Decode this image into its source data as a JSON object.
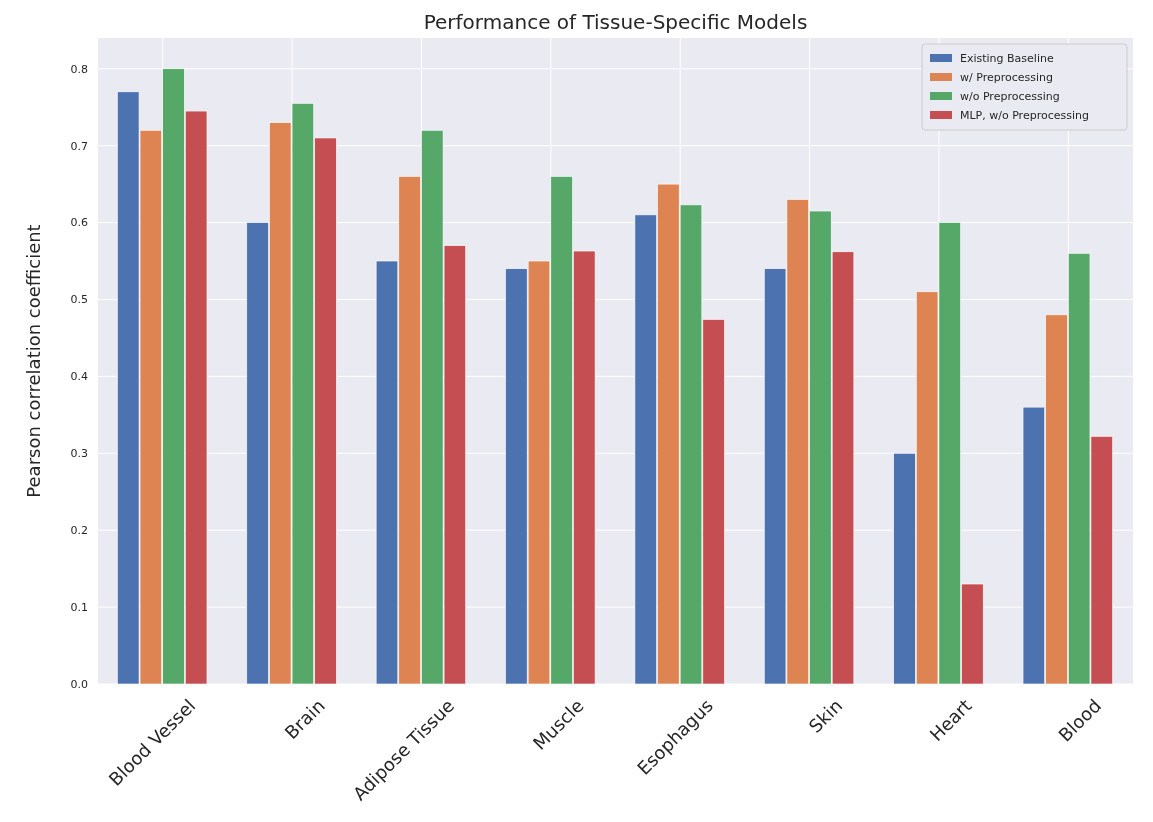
{
  "chart_data": {
    "type": "bar",
    "title": "Performance of Tissue-Specific Models",
    "ylabel": "Pearson correlation coefficient",
    "categories": [
      "Blood Vessel",
      "Brain",
      "Adipose Tissue",
      "Muscle",
      "Esophagus",
      "Skin",
      "Heart",
      "Blood"
    ],
    "series": [
      {
        "name": "Existing Baseline",
        "color": "#4c72b0",
        "values": [
          0.77,
          0.6,
          0.55,
          0.54,
          0.61,
          0.54,
          0.3,
          0.36
        ]
      },
      {
        "name": "w/ Preprocessing",
        "color": "#dd8452",
        "values": [
          0.72,
          0.73,
          0.66,
          0.55,
          0.65,
          0.63,
          0.51,
          0.48
        ]
      },
      {
        "name": "w/o Preprocessing",
        "color": "#55a868",
        "values": [
          0.8,
          0.755,
          0.72,
          0.66,
          0.623,
          0.615,
          0.6,
          0.56
        ]
      },
      {
        "name": "MLP, w/o Preprocessing",
        "color": "#c44e52",
        "values": [
          0.745,
          0.71,
          0.57,
          0.563,
          0.474,
          0.562,
          0.13,
          0.322
        ]
      }
    ],
    "ylim": [
      0,
      0.84
    ],
    "yticks": [
      {
        "value": 0,
        "label": "0.0"
      },
      {
        "value": 0.1,
        "label": "0.1"
      },
      {
        "value": 0.2,
        "label": "0.2"
      },
      {
        "value": 0.3,
        "label": "0.3"
      },
      {
        "value": 0.4,
        "label": "0.4"
      },
      {
        "value": 0.5,
        "label": "0.5"
      },
      {
        "value": 0.6,
        "label": "0.6"
      },
      {
        "value": 0.7,
        "label": "0.7"
      },
      {
        "value": 0.8,
        "label": "0.8"
      }
    ],
    "grid": true,
    "legend": "top right"
  }
}
